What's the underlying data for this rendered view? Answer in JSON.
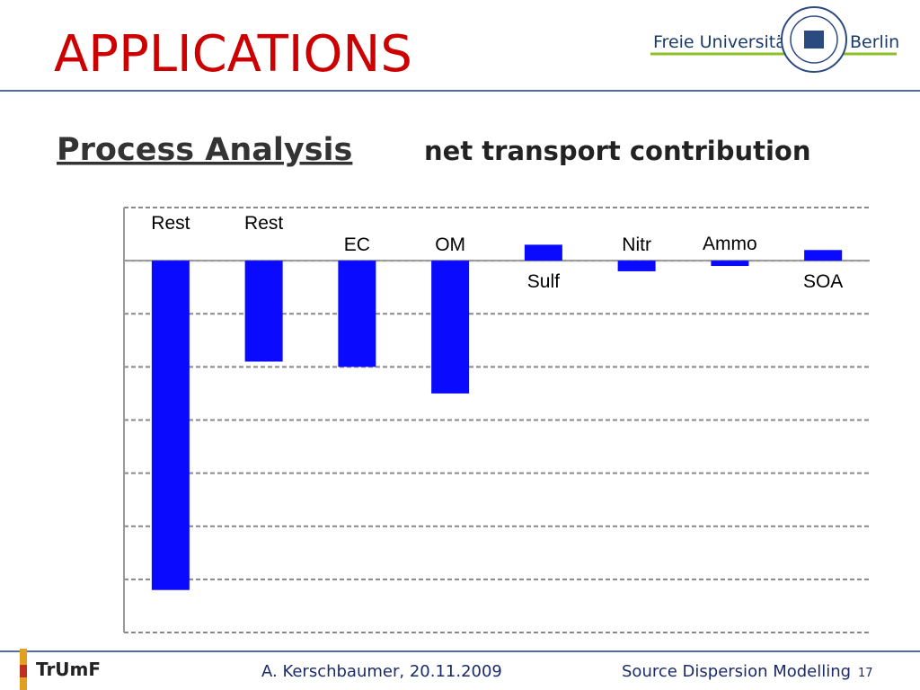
{
  "slide": {
    "title": "APPLICATIONS",
    "logo_left": "Freie Universität",
    "logo_right": "Berlin",
    "heading": "Process Analysis",
    "subheading": "net transport contribution",
    "footer_logo": "TrUmF",
    "footer_author": "A. Kerschbaumer, 20.11.2009",
    "footer_topic": "Source Dispersion Modelling",
    "page_number": "17"
  },
  "chart_data": {
    "type": "bar",
    "categories": [
      "Rest",
      "Rest",
      "EC",
      "OM",
      "Sulf",
      "Nitr",
      "Ammo",
      "SOA"
    ],
    "values": [
      -6.2,
      -1.9,
      -2.0,
      -2.5,
      0.3,
      -0.2,
      -0.1,
      0.2
    ],
    "color": "#0a0aff",
    "ylim": [
      -7,
      1
    ],
    "yticks": [
      -7,
      -6,
      -5,
      -4,
      -3,
      -2,
      -1,
      0,
      1
    ],
    "grid": true
  }
}
